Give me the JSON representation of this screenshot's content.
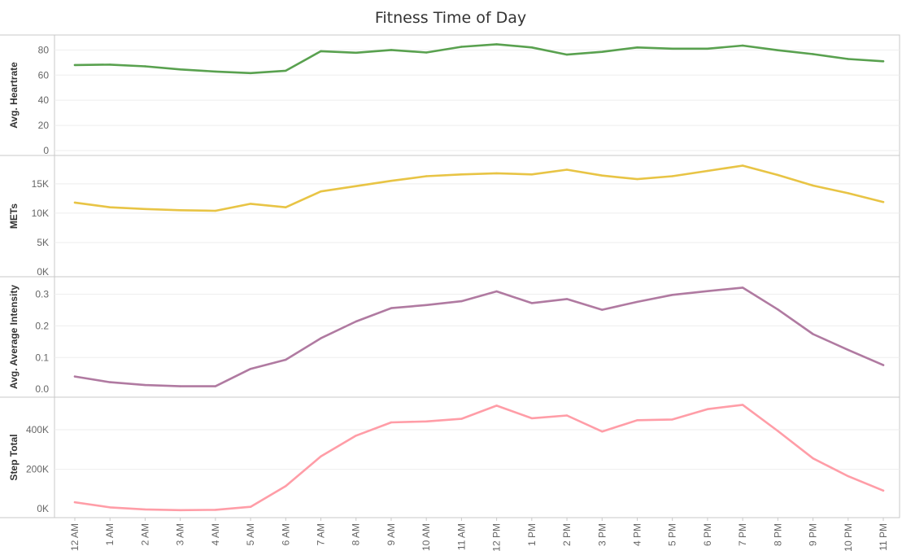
{
  "chart_data": {
    "type": "line",
    "title": "Fitness Time of Day",
    "categories": [
      "12 AM",
      "1 AM",
      "2 AM",
      "3 AM",
      "4 AM",
      "5 AM",
      "6 AM",
      "7 AM",
      "8 AM",
      "9 AM",
      "10 AM",
      "11 AM",
      "12 PM",
      "1 PM",
      "2 PM",
      "3 PM",
      "4 PM",
      "5 PM",
      "6 PM",
      "7 PM",
      "8 PM",
      "9 PM",
      "10 PM",
      "11 PM"
    ],
    "grid": true,
    "panels": [
      {
        "ylabel": "Avg. Heartrate",
        "color": "#59a14f",
        "ylim": [
          0,
          88
        ],
        "ticks": [
          0,
          20,
          40,
          60,
          80
        ],
        "tick_labels": [
          "0",
          "20",
          "40",
          "60",
          "80"
        ],
        "values": [
          68,
          68.3,
          67,
          64.5,
          62.8,
          61.6,
          63.5,
          79,
          77.8,
          80,
          78,
          82.5,
          84.5,
          82,
          76.3,
          78.5,
          82,
          81,
          81,
          83.5,
          79.8,
          76.7,
          72.8,
          71
        ]
      },
      {
        "ylabel": "METs",
        "color": "#e8c445",
        "ylim": [
          0,
          19000
        ],
        "ticks": [
          0,
          5000,
          10000,
          15000
        ],
        "tick_labels": [
          "0K",
          "5K",
          "10K",
          "15K"
        ],
        "values": [
          11800,
          11000,
          10700,
          10500,
          10400,
          11600,
          11000,
          13700,
          14600,
          15500,
          16300,
          16600,
          16800,
          16600,
          17400,
          16400,
          15800,
          16300,
          17200,
          18100,
          16500,
          14700,
          13400,
          11900
        ]
      },
      {
        "ylabel": "Avg. Average Intensity",
        "color": "#b07aa1",
        "ylim": [
          -0.01,
          0.34
        ],
        "ticks": [
          0.0,
          0.1,
          0.2,
          0.3
        ],
        "tick_labels": [
          "0.0",
          "0.1",
          "0.2",
          "0.3"
        ],
        "values": [
          0.04,
          0.022,
          0.013,
          0.009,
          0.009,
          0.064,
          0.093,
          0.161,
          0.214,
          0.256,
          0.266,
          0.278,
          0.309,
          0.272,
          0.285,
          0.251,
          0.276,
          0.298,
          0.31,
          0.321,
          0.252,
          0.174,
          0.124,
          0.076
        ]
      },
      {
        "ylabel": "Step Total",
        "color": "#ff9da7",
        "ylim": [
          -20000,
          540000
        ],
        "ticks": [
          0,
          200000,
          400000
        ],
        "tick_labels": [
          "0K",
          "200K",
          "400K"
        ],
        "values": [
          33000,
          7000,
          -3000,
          -7000,
          -5000,
          10000,
          115000,
          265000,
          370000,
          437000,
          442000,
          455000,
          522000,
          458000,
          472000,
          391000,
          448000,
          452000,
          504000,
          526000,
          394000,
          255000,
          165000,
          92000
        ]
      }
    ]
  }
}
